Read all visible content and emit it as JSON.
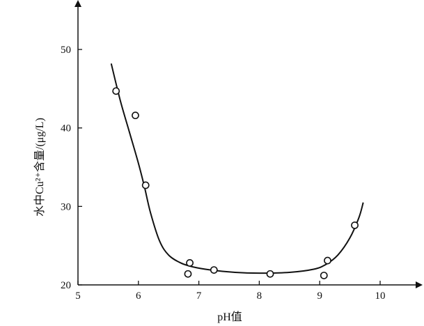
{
  "chart_data": {
    "type": "scatter",
    "xlabel": "pH值",
    "ylabel": "水中Cu²⁺含量/(μg/L)",
    "xlim": [
      5,
      10
    ],
    "ylim": [
      20,
      55
    ],
    "xticks": [
      "5",
      "6",
      "7",
      "8",
      "9",
      "10"
    ],
    "yticks": [
      "20",
      "30",
      "40",
      "50"
    ],
    "grid": false,
    "series": [
      {
        "kind": "points",
        "x": [
          5.63,
          5.95,
          6.12,
          6.82,
          6.85,
          7.25,
          8.18,
          9.07,
          9.13,
          9.58
        ],
        "y": [
          44.7,
          41.6,
          32.7,
          21.4,
          22.8,
          21.9,
          21.4,
          21.2,
          23.1,
          27.6
        ]
      },
      {
        "kind": "fit-curve",
        "x": [
          5.55,
          5.7,
          5.85,
          6.0,
          6.1,
          6.2,
          6.35,
          6.5,
          6.7,
          6.9,
          7.2,
          7.6,
          8.0,
          8.5,
          8.9,
          9.1,
          9.3,
          9.5,
          9.65,
          9.72
        ],
        "y": [
          48.2,
          43.5,
          39.5,
          35.5,
          32.5,
          29.2,
          25.6,
          23.8,
          22.8,
          22.3,
          21.9,
          21.6,
          21.5,
          21.6,
          22.0,
          22.6,
          23.8,
          26.0,
          28.6,
          30.5
        ]
      }
    ],
    "y_axis_arrow": true,
    "x_axis_arrow": true
  }
}
